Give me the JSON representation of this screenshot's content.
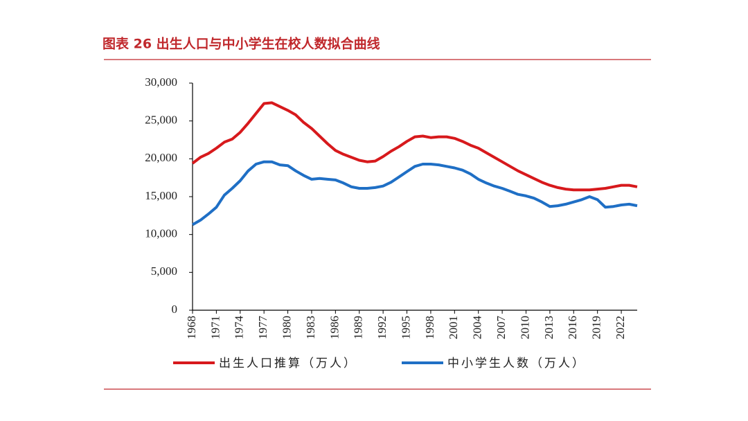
{
  "chart_data": {
    "type": "line",
    "title": "图表 26  出生人口与中小学生在校人数拟合曲线",
    "x": [
      1968,
      1969,
      1970,
      1971,
      1972,
      1973,
      1974,
      1975,
      1976,
      1977,
      1978,
      1979,
      1980,
      1981,
      1982,
      1983,
      1984,
      1985,
      1986,
      1987,
      1988,
      1989,
      1990,
      1991,
      1992,
      1993,
      1994,
      1995,
      1996,
      1997,
      1998,
      1999,
      2000,
      2001,
      2002,
      2003,
      2004,
      2005,
      2006,
      2007,
      2008,
      2009,
      2010,
      2011,
      2012,
      2013,
      2014,
      2015,
      2016,
      2017,
      2018,
      2019,
      2020,
      2021,
      2022,
      2023,
      2024
    ],
    "series": [
      {
        "name": "出生人口推算（万人）",
        "color": "#d7191c",
        "values": [
          19400,
          20200,
          20700,
          21400,
          22200,
          22600,
          23500,
          24700,
          26000,
          27300,
          27400,
          26900,
          26400,
          25800,
          24800,
          24000,
          23000,
          22000,
          21100,
          20600,
          20200,
          19800,
          19600,
          19700,
          20300,
          21000,
          21600,
          22300,
          22900,
          23000,
          22800,
          22900,
          22900,
          22700,
          22300,
          21800,
          21400,
          20800,
          20200,
          19600,
          19000,
          18400,
          17900,
          17400,
          16900,
          16500,
          16200,
          16000,
          15900,
          15900,
          15900,
          16000,
          16100,
          16300,
          16500,
          16500,
          16300
        ]
      },
      {
        "name": "中小学生人数（万人）",
        "color": "#1f6fc5",
        "values": [
          11300,
          11900,
          12700,
          13600,
          15200,
          16100,
          17100,
          18400,
          19300,
          19600,
          19600,
          19200,
          19100,
          18400,
          17800,
          17300,
          17400,
          17300,
          17200,
          16800,
          16300,
          16100,
          16100,
          16200,
          16400,
          16900,
          17600,
          18300,
          19000,
          19300,
          19300,
          19200,
          19000,
          18800,
          18500,
          18000,
          17300,
          16800,
          16400,
          16100,
          15700,
          15300,
          15100,
          14800,
          14300,
          13700,
          13800,
          14000,
          14300,
          14600,
          15000,
          14600,
          13600,
          13700,
          13900,
          14000,
          13800
        ]
      }
    ],
    "xlim": [
      1968,
      2024
    ],
    "xticks": [
      1968,
      1971,
      1974,
      1977,
      1980,
      1983,
      1986,
      1989,
      1992,
      1995,
      1998,
      2001,
      2004,
      2007,
      2010,
      2013,
      2016,
      2019,
      2022
    ],
    "ylim": [
      0,
      30000
    ],
    "yticks": [
      0,
      {
        "value": 5000,
        "label": "5,000"
      },
      {
        "value": 10000,
        "label": "10,000"
      },
      {
        "value": 15000,
        "label": "15,000"
      },
      {
        "value": 20000,
        "label": "20,000"
      },
      {
        "value": 25000,
        "label": "25,000"
      },
      {
        "value": 30000,
        "label": "30,000"
      }
    ],
    "grid": false
  }
}
